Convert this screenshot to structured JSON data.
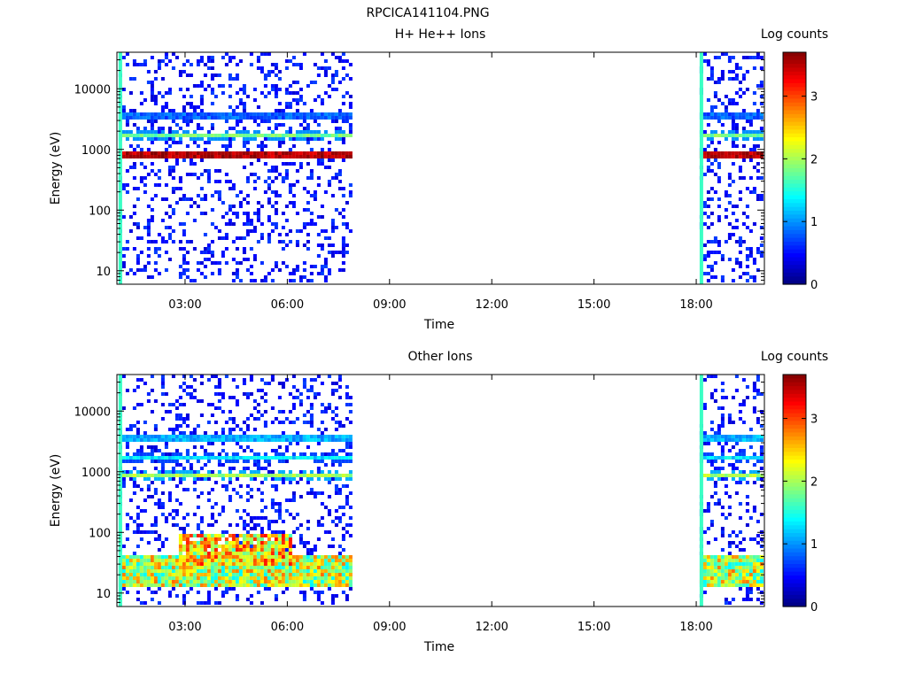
{
  "figure": {
    "title": "RPCICA141104.PNG"
  },
  "colorscale": {
    "stops": [
      "#00007f",
      "#0000ff",
      "#007fff",
      "#00ffff",
      "#7fff7f",
      "#ffff00",
      "#ff7f00",
      "#ff0000",
      "#7f0000"
    ]
  },
  "chart_data": [
    {
      "type": "heatmap",
      "title": "H+ He++ Ions",
      "xlabel": "Time",
      "ylabel": "Energy (eV)",
      "x_ticks": [
        "03:00",
        "06:00",
        "09:00",
        "12:00",
        "15:00",
        "18:00"
      ],
      "x_tick_hours": [
        3,
        6,
        9,
        12,
        15,
        18
      ],
      "xlim_hours": [
        1.0,
        20.0
      ],
      "y_scale": "log",
      "ylim": [
        6,
        40000
      ],
      "y_ticks": [
        "10",
        "100",
        "1000",
        "10000"
      ],
      "y_tick_values": [
        10,
        100,
        1000,
        10000
      ],
      "colorbar": {
        "label": "Log counts",
        "ticks": [
          "0",
          "1",
          "2",
          "3"
        ],
        "tick_values": [
          0,
          1,
          2,
          3
        ],
        "range": [
          0,
          3.7
        ]
      },
      "data_intervals_hours": [
        [
          1.05,
          7.85
        ],
        [
          18.1,
          19.95
        ]
      ],
      "bands": [
        {
          "energy_ev": 800,
          "log_counts": 3.5
        },
        {
          "energy_ev": 1700,
          "log_counts": 1.8
        },
        {
          "energy_ev": 3500,
          "log_counts": 0.8
        }
      ],
      "background_log_counts": 0.3,
      "edge_spikes_hours": [
        1.05,
        18.1
      ]
    },
    {
      "type": "heatmap",
      "title": "Other Ions",
      "xlabel": "Time",
      "ylabel": "Energy (eV)",
      "x_ticks": [
        "03:00",
        "06:00",
        "09:00",
        "12:00",
        "15:00",
        "18:00"
      ],
      "x_tick_hours": [
        3,
        6,
        9,
        12,
        15,
        18
      ],
      "xlim_hours": [
        1.0,
        20.0
      ],
      "y_scale": "log",
      "ylim": [
        6,
        40000
      ],
      "y_ticks": [
        "10",
        "100",
        "1000",
        "10000"
      ],
      "y_tick_values": [
        10,
        100,
        1000,
        10000
      ],
      "colorbar": {
        "label": "Log counts",
        "ticks": [
          "0",
          "1",
          "2",
          "3"
        ],
        "tick_values": [
          0,
          1,
          2,
          3
        ],
        "range": [
          0,
          3.7
        ]
      },
      "data_intervals_hours": [
        [
          1.05,
          7.85
        ],
        [
          18.1,
          19.95
        ]
      ],
      "bands": [
        {
          "energy_ev": 850,
          "log_counts": 2.0
        },
        {
          "energy_ev": 1750,
          "log_counts": 1.3
        },
        {
          "energy_ev": 3500,
          "log_counts": 1.1
        }
      ],
      "low_energy_population": {
        "energy_ev_range": [
          15,
          40
        ],
        "peak_log_counts": 3.0
      },
      "enhanced_interval_hours": [
        2.8,
        6.1
      ],
      "enhanced_energy_ev_range": [
        30,
        90
      ],
      "background_log_counts": 0.3,
      "edge_spikes_hours": [
        1.05,
        18.1
      ]
    }
  ]
}
